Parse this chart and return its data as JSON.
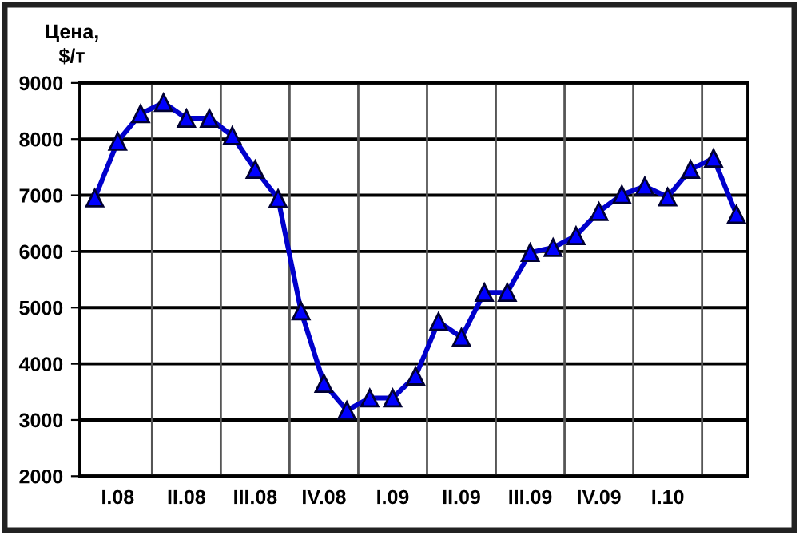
{
  "chart_data": {
    "type": "line",
    "ylabel": "Цена,\n$/т",
    "categories": [
      null,
      "I.08",
      null,
      null,
      "II.08",
      null,
      null,
      "III.08",
      null,
      null,
      "IV.08",
      null,
      null,
      "I.09",
      null,
      null,
      "II.09",
      null,
      null,
      "III.09",
      null,
      null,
      "IV.09",
      null,
      null,
      "I.10",
      null,
      null,
      null
    ],
    "series": [
      {
        "color": "#0000cc",
        "values": [
          6950,
          7960,
          8450,
          8650,
          8370,
          8370,
          8060,
          7460,
          6940,
          4940,
          3650,
          3170,
          3390,
          3390,
          3780,
          4750,
          4470,
          5270,
          5270,
          5980,
          6070,
          6280,
          6710,
          7010,
          7160,
          6970,
          7460,
          7660,
          6660
        ]
      }
    ],
    "ylim": [
      2000,
      9000
    ],
    "yticks": [
      2000,
      3000,
      4000,
      5000,
      6000,
      7000,
      8000,
      9000
    ],
    "grid": true,
    "marker": "triangle",
    "line_style": "solid"
  }
}
